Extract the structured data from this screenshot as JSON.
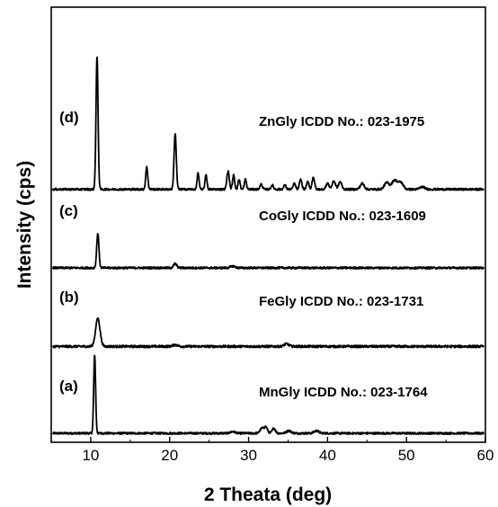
{
  "chart_data": {
    "type": "line",
    "xlabel": "2 Theata (deg)",
    "ylabel": "Intensity (cps)",
    "xlim": [
      5,
      60
    ],
    "xticks": [
      10,
      20,
      30,
      40,
      50,
      60
    ],
    "yticks_shown": false,
    "grid": false,
    "legend": "none",
    "line_color": "#000000",
    "series": [
      {
        "label": "(a)",
        "annotation": "MnGly ICDD No.: 023-1764",
        "baseline": 0.0,
        "noise": 0.012,
        "peaks": [
          {
            "x": 10.5,
            "h": 0.95,
            "w": 0.12
          },
          {
            "x": 31.7,
            "h": 0.06,
            "w": 0.25
          },
          {
            "x": 32.2,
            "h": 0.07,
            "w": 0.2
          },
          {
            "x": 33.2,
            "h": 0.06,
            "w": 0.2
          },
          {
            "x": 35.1,
            "h": 0.03,
            "w": 0.3
          },
          {
            "x": 38.6,
            "h": 0.03,
            "w": 0.3
          },
          {
            "x": 28.0,
            "h": 0.02,
            "w": 0.3
          }
        ]
      },
      {
        "label": "(b)",
        "annotation": "FeGly ICDD No.: 023-1731",
        "baseline": 1.05,
        "noise": 0.014,
        "peaks": [
          {
            "x": 10.9,
            "h": 0.34,
            "w": 0.28
          },
          {
            "x": 20.7,
            "h": 0.02,
            "w": 0.3
          },
          {
            "x": 34.8,
            "h": 0.03,
            "w": 0.3
          }
        ]
      },
      {
        "label": "(c)",
        "annotation": "CoGly ICDD No.: 023-1609",
        "baseline": 2.0,
        "noise": 0.012,
        "peaks": [
          {
            "x": 10.9,
            "h": 0.42,
            "w": 0.14
          },
          {
            "x": 20.7,
            "h": 0.05,
            "w": 0.2
          },
          {
            "x": 28.0,
            "h": 0.02,
            "w": 0.3
          }
        ]
      },
      {
        "label": "(d)",
        "annotation": "ZnGly ICDD No.: 023-1975",
        "baseline": 2.95,
        "noise": 0.012,
        "peaks": [
          {
            "x": 10.8,
            "h": 1.6,
            "w": 0.13
          },
          {
            "x": 17.1,
            "h": 0.27,
            "w": 0.13
          },
          {
            "x": 20.7,
            "h": 0.68,
            "w": 0.14
          },
          {
            "x": 23.6,
            "h": 0.2,
            "w": 0.12
          },
          {
            "x": 24.6,
            "h": 0.18,
            "w": 0.12
          },
          {
            "x": 27.4,
            "h": 0.22,
            "w": 0.15
          },
          {
            "x": 28.1,
            "h": 0.17,
            "w": 0.13
          },
          {
            "x": 28.8,
            "h": 0.12,
            "w": 0.13
          },
          {
            "x": 29.6,
            "h": 0.12,
            "w": 0.13
          },
          {
            "x": 31.6,
            "h": 0.06,
            "w": 0.15
          },
          {
            "x": 33.0,
            "h": 0.05,
            "w": 0.15
          },
          {
            "x": 34.6,
            "h": 0.05,
            "w": 0.15
          },
          {
            "x": 35.8,
            "h": 0.07,
            "w": 0.15
          },
          {
            "x": 36.6,
            "h": 0.12,
            "w": 0.15
          },
          {
            "x": 37.5,
            "h": 0.09,
            "w": 0.15
          },
          {
            "x": 38.2,
            "h": 0.15,
            "w": 0.15
          },
          {
            "x": 40.0,
            "h": 0.07,
            "w": 0.2
          },
          {
            "x": 40.8,
            "h": 0.1,
            "w": 0.2
          },
          {
            "x": 41.6,
            "h": 0.09,
            "w": 0.2
          },
          {
            "x": 44.4,
            "h": 0.07,
            "w": 0.25
          },
          {
            "x": 47.5,
            "h": 0.08,
            "w": 0.3
          },
          {
            "x": 48.5,
            "h": 0.11,
            "w": 0.35
          },
          {
            "x": 49.3,
            "h": 0.08,
            "w": 0.3
          },
          {
            "x": 52.0,
            "h": 0.03,
            "w": 0.3
          }
        ]
      }
    ]
  }
}
